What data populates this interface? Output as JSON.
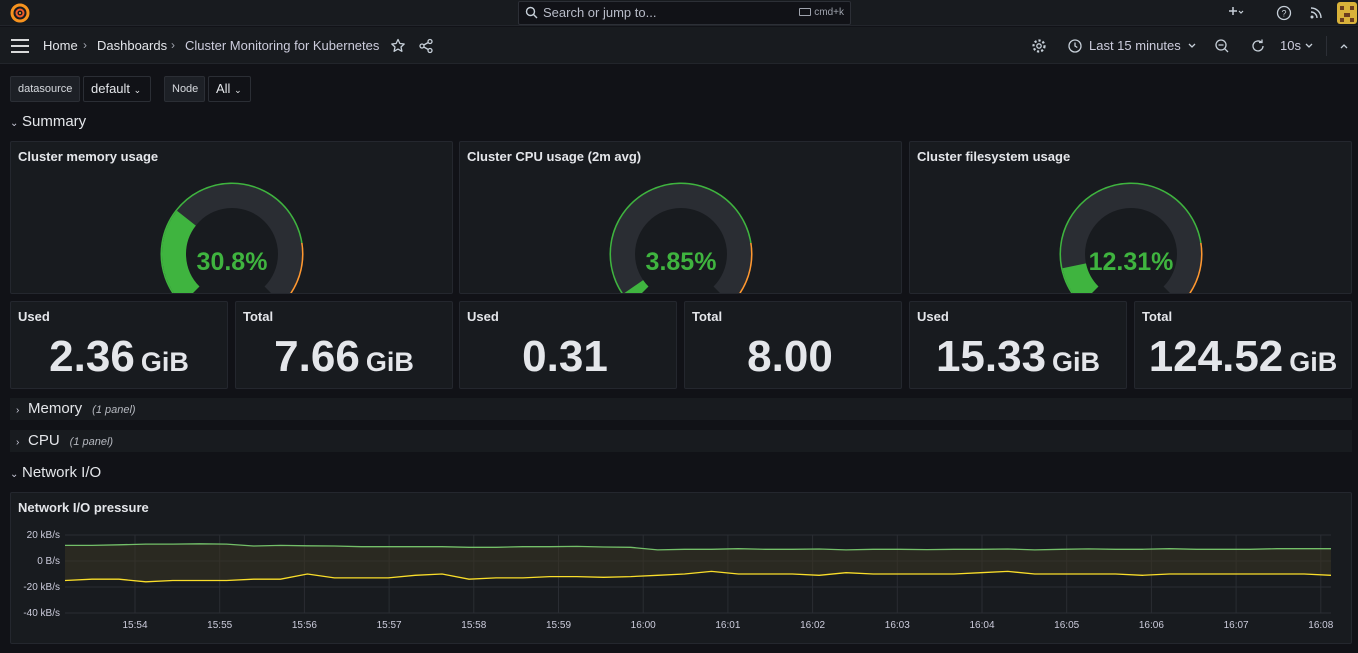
{
  "topbar": {
    "search_placeholder": "Search or jump to...",
    "search_shortcut": "cmd+k"
  },
  "navbar": {
    "breadcrumbs": [
      "Home",
      "Dashboards",
      "Cluster Monitoring for Kubernetes"
    ],
    "time_range": "Last 15 minutes",
    "refresh_interval": "10s"
  },
  "variables": [
    {
      "label": "datasource",
      "value": "default"
    },
    {
      "label": "Node",
      "value": "All"
    }
  ],
  "rows": {
    "summary": {
      "title": "Summary"
    },
    "memory": {
      "title": "Memory",
      "count": "(1 panel)"
    },
    "cpu": {
      "title": "CPU",
      "count": "(1 panel)"
    },
    "network": {
      "title": "Network I/O"
    }
  },
  "gauges": [
    {
      "title": "Cluster memory usage",
      "value": "30.8%",
      "fraction": 0.308
    },
    {
      "title": "Cluster CPU usage (2m avg)",
      "value": "3.85%",
      "fraction": 0.0385
    },
    {
      "title": "Cluster filesystem usage",
      "value": "12.31%",
      "fraction": 0.1231
    }
  ],
  "stats": [
    {
      "label": "Used",
      "value": "2.36",
      "unit": "GiB"
    },
    {
      "label": "Total",
      "value": "7.66",
      "unit": "GiB"
    },
    {
      "label": "Used",
      "value": "0.31",
      "unit": ""
    },
    {
      "label": "Total",
      "value": "8.00",
      "unit": ""
    },
    {
      "label": "Used",
      "value": "15.33",
      "unit": "GiB"
    },
    {
      "label": "Total",
      "value": "124.52",
      "unit": "GiB"
    }
  ],
  "network_panel": {
    "title": "Network I/O pressure",
    "colors": {
      "received": "#73bf69",
      "transmitted": "#fade2a",
      "gauge_green": "#3fb43f",
      "gauge_orange": "#ff9830",
      "track": "#2a2d33"
    }
  },
  "chart_data": {
    "type": "line",
    "title": "Network I/O pressure",
    "y_ticks": [
      "20 kB/s",
      "0 B/s",
      "-20 kB/s",
      "-40 kB/s"
    ],
    "ylim": [
      -40,
      20
    ],
    "x_ticks": [
      "15:54",
      "15:55",
      "15:56",
      "15:57",
      "15:58",
      "15:59",
      "16:00",
      "16:01",
      "16:02",
      "16:03",
      "16:04",
      "16:05",
      "16:06",
      "16:07",
      "16:08"
    ],
    "x_range": [
      "15:53:23",
      "16:08:10"
    ],
    "series": [
      {
        "points": [
          [
            0,
            12
          ],
          [
            1,
            12
          ],
          [
            2,
            12.5
          ],
          [
            3,
            13
          ],
          [
            4,
            13
          ],
          [
            5,
            13.2
          ],
          [
            6,
            13
          ],
          [
            7,
            11.5
          ],
          [
            8,
            12
          ],
          [
            9,
            11.7
          ],
          [
            10,
            11.5
          ],
          [
            11,
            11
          ],
          [
            12,
            11
          ],
          [
            13,
            11
          ],
          [
            14,
            11
          ],
          [
            15,
            10.5
          ],
          [
            16,
            10.5
          ],
          [
            17,
            11
          ],
          [
            18,
            11
          ],
          [
            19,
            11.2
          ],
          [
            20,
            10.8
          ],
          [
            21,
            10.5
          ],
          [
            22,
            8.5
          ],
          [
            23,
            9
          ],
          [
            24,
            9
          ],
          [
            25,
            9.5
          ],
          [
            26,
            9
          ],
          [
            27,
            9
          ],
          [
            28,
            9.2
          ],
          [
            29,
            8.5
          ],
          [
            30,
            9
          ],
          [
            31,
            9
          ],
          [
            32,
            8.8
          ],
          [
            33,
            9
          ],
          [
            34,
            9
          ],
          [
            35,
            9.2
          ],
          [
            36,
            8.5
          ],
          [
            37,
            9
          ],
          [
            38,
            9.3
          ],
          [
            39,
            9
          ],
          [
            40,
            9
          ],
          [
            41,
            9.5
          ],
          [
            42,
            9
          ],
          [
            43,
            9
          ],
          [
            44,
            9
          ],
          [
            45,
            9.5
          ],
          [
            46,
            9.5
          ],
          [
            47,
            9.5
          ]
        ]
      },
      {
        "points": [
          [
            0,
            -15
          ],
          [
            1,
            -14
          ],
          [
            2,
            -14
          ],
          [
            3,
            -16
          ],
          [
            4,
            -15
          ],
          [
            5,
            -15
          ],
          [
            6,
            -15
          ],
          [
            7,
            -14
          ],
          [
            8,
            -14
          ],
          [
            9,
            -10
          ],
          [
            10,
            -13
          ],
          [
            11,
            -13
          ],
          [
            12,
            -13
          ],
          [
            13,
            -11
          ],
          [
            14,
            -10
          ],
          [
            15,
            -14
          ],
          [
            16,
            -13
          ],
          [
            17,
            -13
          ],
          [
            18,
            -12
          ],
          [
            19,
            -12
          ],
          [
            20,
            -12.5
          ],
          [
            21,
            -12
          ],
          [
            22,
            -11
          ],
          [
            23,
            -10
          ],
          [
            24,
            -8
          ],
          [
            25,
            -10
          ],
          [
            26,
            -10
          ],
          [
            27,
            -10
          ],
          [
            28,
            -11
          ],
          [
            29,
            -9
          ],
          [
            30,
            -10
          ],
          [
            31,
            -10
          ],
          [
            32,
            -10
          ],
          [
            33,
            -10
          ],
          [
            34,
            -9
          ],
          [
            35,
            -8
          ],
          [
            36,
            -10
          ],
          [
            37,
            -10
          ],
          [
            38,
            -10
          ],
          [
            39,
            -10
          ],
          [
            40,
            -11
          ],
          [
            41,
            -10
          ],
          [
            42,
            -10
          ],
          [
            43,
            -10
          ],
          [
            44,
            -10
          ],
          [
            45,
            -10
          ],
          [
            46,
            -10
          ],
          [
            47,
            -11
          ]
        ]
      }
    ]
  }
}
